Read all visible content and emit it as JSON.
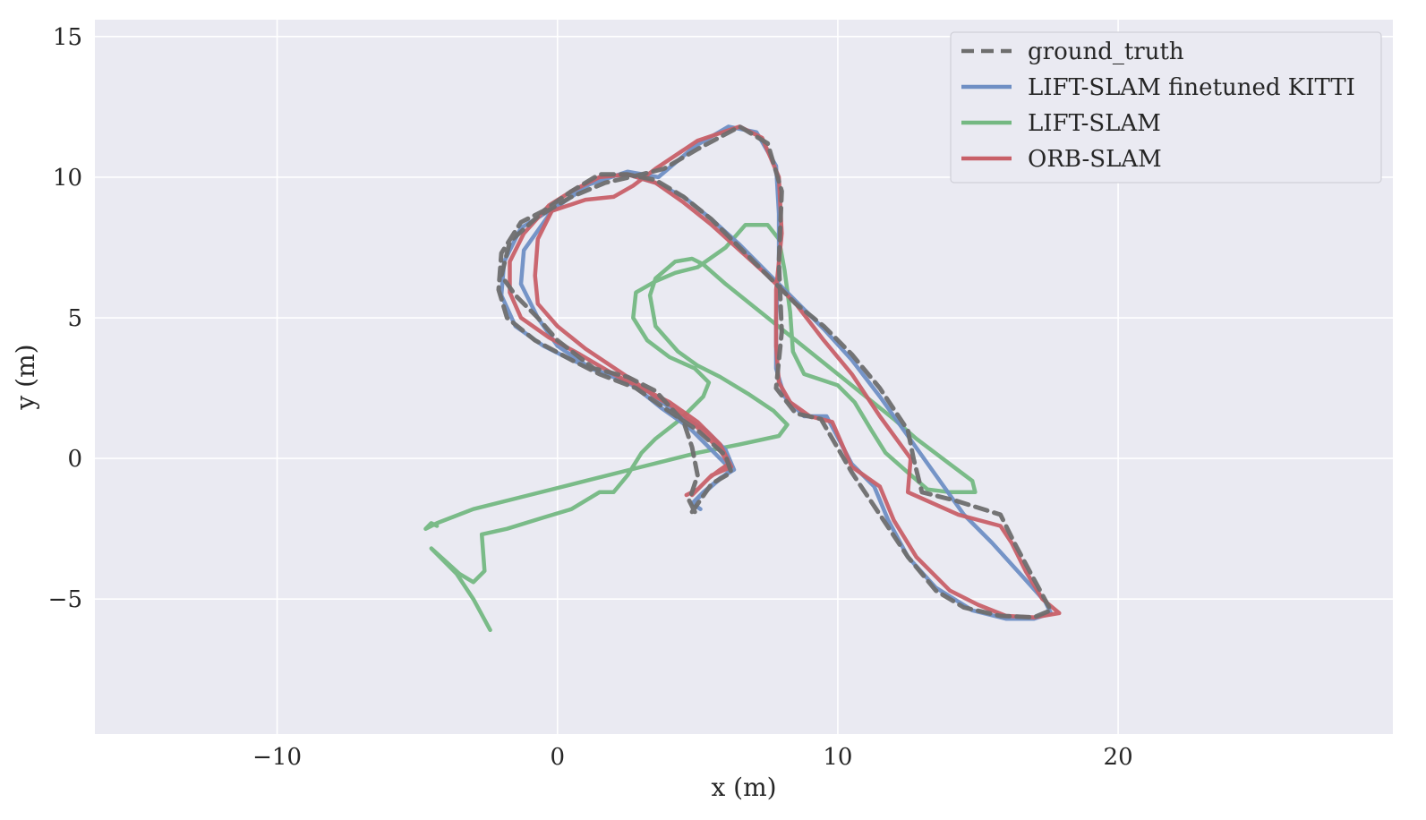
{
  "chart_data": {
    "type": "line",
    "title": "",
    "xlabel": "x (m)",
    "ylabel": "y (m)",
    "xlim": [
      -16.5,
      29.8
    ],
    "ylim": [
      -9.8,
      15.6
    ],
    "xticks": [
      -10,
      0,
      10,
      20
    ],
    "yticks": [
      -5,
      0,
      5,
      10,
      15
    ],
    "xtick_labels": [
      "−10",
      "0",
      "10",
      "20"
    ],
    "ytick_labels": [
      "−5",
      "0",
      "5",
      "10",
      "15"
    ],
    "grid": true,
    "legend_position": "top-right",
    "colors": {
      "plot_background": "#eaeaf2",
      "grid": "#ffffff",
      "ground_truth": "#6e6e6e",
      "lift_finetuned": "#6f8fc4",
      "lift": "#74b882",
      "orb": "#c86068"
    },
    "series": [
      {
        "name": "ground_truth",
        "style": "dashed",
        "color": "#6e6e6e",
        "points": [
          [
            4.9,
            -1.9
          ],
          [
            4.7,
            -1.5
          ],
          [
            5.0,
            -0.6
          ],
          [
            4.8,
            0.4
          ],
          [
            4.5,
            1.3
          ],
          [
            3.5,
            2.4
          ],
          [
            2.5,
            2.9
          ],
          [
            1.3,
            3.2
          ],
          [
            0.0,
            4.2
          ],
          [
            -0.7,
            5.0
          ],
          [
            -1.5,
            5.8
          ],
          [
            -2.0,
            6.5
          ],
          [
            -1.7,
            7.7
          ],
          [
            -0.7,
            8.6
          ],
          [
            0.5,
            9.3
          ],
          [
            1.7,
            9.8
          ],
          [
            3.0,
            10.1
          ],
          [
            3.8,
            10.3
          ],
          [
            5.0,
            11.0
          ],
          [
            6.5,
            11.8
          ],
          [
            7.5,
            11.2
          ],
          [
            8.0,
            9.5
          ],
          [
            7.9,
            7.0
          ],
          [
            8.0,
            4.5
          ],
          [
            7.8,
            2.5
          ],
          [
            8.5,
            1.6
          ],
          [
            9.4,
            1.4
          ],
          [
            10.5,
            -0.5
          ],
          [
            11.5,
            -2.0
          ],
          [
            12.5,
            -3.5
          ],
          [
            13.5,
            -4.7
          ],
          [
            14.5,
            -5.3
          ],
          [
            15.8,
            -5.6
          ],
          [
            17.0,
            -5.65
          ],
          [
            17.6,
            -5.4
          ],
          [
            17.0,
            -4.3
          ],
          [
            16.3,
            -3.0
          ],
          [
            15.8,
            -2.0
          ],
          [
            14.2,
            -1.5
          ],
          [
            13.0,
            -1.2
          ],
          [
            12.7,
            0.0
          ],
          [
            12.5,
            1.0
          ],
          [
            11.5,
            2.5
          ],
          [
            10.5,
            3.7
          ],
          [
            9.5,
            4.7
          ],
          [
            8.5,
            5.5
          ],
          [
            7.5,
            6.5
          ],
          [
            6.5,
            7.5
          ],
          [
            5.5,
            8.5
          ],
          [
            4.5,
            9.3
          ],
          [
            3.5,
            9.9
          ],
          [
            2.5,
            10.1
          ],
          [
            1.5,
            10.1
          ],
          [
            0.5,
            9.5
          ],
          [
            -0.5,
            8.8
          ],
          [
            -1.3,
            8.4
          ],
          [
            -2.0,
            7.3
          ],
          [
            -2.1,
            6.0
          ],
          [
            -1.8,
            5.0
          ],
          [
            -0.8,
            4.2
          ],
          [
            0.5,
            3.5
          ],
          [
            1.5,
            3.0
          ],
          [
            2.8,
            2.5
          ],
          [
            3.8,
            1.8
          ],
          [
            5.0,
            1.0
          ],
          [
            6.0,
            0.1
          ],
          [
            6.2,
            -0.5
          ],
          [
            5.5,
            -0.9
          ],
          [
            4.8,
            -1.9
          ]
        ]
      },
      {
        "name": "LIFT-SLAM finetuned KITTI",
        "style": "solid",
        "color": "#6f8fc4",
        "points": [
          [
            5.1,
            -1.8
          ],
          [
            4.8,
            -1.6
          ],
          [
            5.2,
            -1.2
          ],
          [
            5.8,
            -0.7
          ],
          [
            6.3,
            -0.4
          ],
          [
            6.0,
            0.3
          ],
          [
            5.3,
            1.0
          ],
          [
            4.4,
            1.5
          ],
          [
            3.2,
            2.4
          ],
          [
            2.0,
            2.9
          ],
          [
            1.2,
            3.2
          ],
          [
            0.0,
            4.0
          ],
          [
            -0.7,
            5.0
          ],
          [
            -1.3,
            6.2
          ],
          [
            -1.2,
            7.4
          ],
          [
            -0.2,
            8.8
          ],
          [
            1.0,
            9.7
          ],
          [
            2.5,
            10.2
          ],
          [
            3.6,
            10.0
          ],
          [
            4.9,
            11.1
          ],
          [
            6.1,
            11.8
          ],
          [
            7.1,
            11.6
          ],
          [
            7.8,
            10.4
          ],
          [
            7.9,
            8.7
          ],
          [
            7.9,
            6.8
          ],
          [
            7.8,
            5.0
          ],
          [
            7.8,
            3.2
          ],
          [
            8.1,
            2.2
          ],
          [
            8.8,
            1.5
          ],
          [
            9.6,
            1.5
          ],
          [
            10.5,
            -0.2
          ],
          [
            11.3,
            -1.0
          ],
          [
            11.8,
            -2.2
          ],
          [
            12.5,
            -3.5
          ],
          [
            13.5,
            -4.6
          ],
          [
            14.8,
            -5.4
          ],
          [
            16.0,
            -5.7
          ],
          [
            17.0,
            -5.7
          ],
          [
            17.6,
            -5.5
          ],
          [
            17.4,
            -5.1
          ],
          [
            16.5,
            -4.1
          ],
          [
            15.5,
            -3.0
          ],
          [
            14.5,
            -2.0
          ],
          [
            13.5,
            -0.6
          ],
          [
            12.5,
            0.8
          ],
          [
            11.5,
            2.2
          ],
          [
            10.5,
            3.5
          ],
          [
            9.5,
            4.6
          ],
          [
            8.5,
            5.6
          ],
          [
            7.5,
            6.6
          ],
          [
            6.5,
            7.6
          ],
          [
            5.5,
            8.5
          ],
          [
            4.5,
            9.3
          ],
          [
            3.5,
            9.8
          ],
          [
            2.5,
            10.1
          ],
          [
            1.5,
            10.0
          ],
          [
            0.5,
            9.3
          ],
          [
            -0.3,
            8.8
          ],
          [
            -1.3,
            8.2
          ],
          [
            -1.9,
            7.0
          ],
          [
            -2.0,
            5.8
          ],
          [
            -1.5,
            4.7
          ],
          [
            -0.5,
            4.0
          ],
          [
            0.5,
            3.5
          ],
          [
            1.5,
            3.1
          ],
          [
            2.7,
            2.6
          ],
          [
            3.7,
            1.8
          ],
          [
            4.7,
            1.1
          ],
          [
            5.7,
            0.1
          ],
          [
            6.2,
            -0.4
          ],
          [
            5.6,
            -0.9
          ],
          [
            4.8,
            -1.6
          ]
        ]
      },
      {
        "name": "LIFT-SLAM",
        "style": "solid",
        "color": "#74b882",
        "points": [
          [
            -2.4,
            -6.1
          ],
          [
            -3.0,
            -5.0
          ],
          [
            -3.6,
            -4.1
          ],
          [
            -4.3,
            -3.4
          ],
          [
            -4.5,
            -3.2
          ],
          [
            -3.5,
            -4.1
          ],
          [
            -3.0,
            -4.4
          ],
          [
            -2.6,
            -4.0
          ],
          [
            -2.7,
            -2.7
          ],
          [
            -1.8,
            -2.5
          ],
          [
            -0.5,
            -2.1
          ],
          [
            0.5,
            -1.8
          ],
          [
            1.5,
            -1.2
          ],
          [
            2.0,
            -1.2
          ],
          [
            2.5,
            -0.6
          ],
          [
            3.0,
            0.2
          ],
          [
            3.5,
            0.7
          ],
          [
            4.4,
            1.4
          ],
          [
            5.2,
            2.2
          ],
          [
            5.4,
            2.7
          ],
          [
            4.9,
            3.2
          ],
          [
            4.0,
            3.6
          ],
          [
            3.2,
            4.2
          ],
          [
            2.7,
            5.0
          ],
          [
            2.8,
            5.9
          ],
          [
            3.5,
            6.3
          ],
          [
            4.2,
            6.6
          ],
          [
            5.0,
            6.8
          ],
          [
            6.0,
            7.5
          ],
          [
            6.7,
            8.3
          ],
          [
            7.5,
            8.3
          ],
          [
            7.9,
            7.8
          ],
          [
            8.1,
            6.7
          ],
          [
            8.3,
            5.2
          ],
          [
            8.4,
            3.8
          ],
          [
            8.8,
            3.0
          ],
          [
            9.4,
            2.8
          ],
          [
            10.0,
            2.6
          ],
          [
            10.6,
            2.0
          ],
          [
            11.2,
            1.0
          ],
          [
            11.7,
            0.2
          ],
          [
            12.5,
            -0.5
          ],
          [
            13.2,
            -1.1
          ],
          [
            14.0,
            -1.2
          ],
          [
            14.6,
            -1.2
          ],
          [
            14.9,
            -1.2
          ],
          [
            14.8,
            -0.8
          ],
          [
            14.0,
            -0.2
          ],
          [
            12.8,
            0.7
          ],
          [
            12.0,
            1.4
          ],
          [
            11.0,
            2.2
          ],
          [
            10.0,
            3.0
          ],
          [
            9.0,
            3.8
          ],
          [
            8.0,
            4.6
          ],
          [
            7.0,
            5.4
          ],
          [
            6.0,
            6.2
          ],
          [
            5.2,
            6.9
          ],
          [
            4.8,
            7.1
          ],
          [
            4.2,
            7.0
          ],
          [
            3.5,
            6.4
          ],
          [
            3.3,
            5.8
          ],
          [
            3.5,
            4.7
          ],
          [
            4.3,
            3.8
          ],
          [
            5.0,
            3.3
          ],
          [
            5.8,
            2.9
          ],
          [
            6.8,
            2.3
          ],
          [
            7.7,
            1.7
          ],
          [
            8.2,
            1.2
          ],
          [
            7.9,
            0.8
          ],
          [
            6.5,
            0.5
          ],
          [
            5.0,
            0.2
          ],
          [
            3.0,
            -0.3
          ],
          [
            1.0,
            -0.8
          ],
          [
            -1.0,
            -1.3
          ],
          [
            -3.0,
            -1.8
          ],
          [
            -4.3,
            -2.3
          ],
          [
            -4.7,
            -2.5
          ],
          [
            -4.5,
            -2.3
          ],
          [
            -4.3,
            -2.4
          ]
        ]
      },
      {
        "name": "ORB-SLAM",
        "style": "solid",
        "color": "#c86068",
        "points": [
          [
            4.6,
            -1.3
          ],
          [
            5.0,
            -1.1
          ],
          [
            5.4,
            -0.7
          ],
          [
            5.8,
            -0.4
          ],
          [
            6.1,
            -0.2
          ],
          [
            5.8,
            0.3
          ],
          [
            5.0,
            1.1
          ],
          [
            4.2,
            1.8
          ],
          [
            3.5,
            2.2
          ],
          [
            2.5,
            2.9
          ],
          [
            1.0,
            3.9
          ],
          [
            0.0,
            4.7
          ],
          [
            -0.7,
            5.5
          ],
          [
            -0.8,
            6.5
          ],
          [
            -0.7,
            7.8
          ],
          [
            -0.2,
            8.8
          ],
          [
            1.0,
            9.2
          ],
          [
            2.0,
            9.3
          ],
          [
            2.7,
            9.7
          ],
          [
            3.5,
            10.3
          ],
          [
            5.0,
            11.3
          ],
          [
            6.5,
            11.8
          ],
          [
            7.3,
            11.4
          ],
          [
            7.9,
            10.0
          ],
          [
            8.0,
            8.0
          ],
          [
            7.8,
            6.0
          ],
          [
            7.8,
            4.0
          ],
          [
            7.9,
            2.7
          ],
          [
            8.3,
            2.0
          ],
          [
            9.0,
            1.5
          ],
          [
            9.8,
            1.3
          ],
          [
            10.5,
            -0.3
          ],
          [
            11.5,
            -1.0
          ],
          [
            12.0,
            -2.2
          ],
          [
            12.8,
            -3.5
          ],
          [
            14.0,
            -4.7
          ],
          [
            15.0,
            -5.2
          ],
          [
            16.0,
            -5.6
          ],
          [
            17.0,
            -5.65
          ],
          [
            17.9,
            -5.5
          ],
          [
            17.3,
            -5.0
          ],
          [
            16.7,
            -4.0
          ],
          [
            16.2,
            -3.0
          ],
          [
            15.8,
            -2.4
          ],
          [
            14.3,
            -2.0
          ],
          [
            12.5,
            -1.2
          ],
          [
            12.6,
            0.0
          ],
          [
            11.5,
            1.5
          ],
          [
            10.5,
            3.0
          ],
          [
            9.5,
            4.2
          ],
          [
            8.5,
            5.5
          ],
          [
            7.5,
            6.5
          ],
          [
            6.5,
            7.4
          ],
          [
            5.5,
            8.3
          ],
          [
            4.5,
            9.1
          ],
          [
            3.5,
            9.8
          ],
          [
            2.5,
            10.1
          ],
          [
            1.5,
            10.0
          ],
          [
            0.5,
            9.5
          ],
          [
            -0.3,
            9.0
          ],
          [
            -1.2,
            8.0
          ],
          [
            -1.7,
            7.0
          ],
          [
            -1.7,
            5.9
          ],
          [
            -1.3,
            5.0
          ],
          [
            -0.3,
            4.3
          ],
          [
            0.8,
            3.7
          ],
          [
            2.0,
            3.0
          ],
          [
            3.0,
            2.5
          ],
          [
            4.0,
            2.0
          ],
          [
            5.0,
            1.3
          ],
          [
            5.8,
            0.5
          ],
          [
            6.2,
            -0.3
          ],
          [
            5.5,
            -0.6
          ],
          [
            4.8,
            -1.3
          ]
        ]
      }
    ]
  }
}
